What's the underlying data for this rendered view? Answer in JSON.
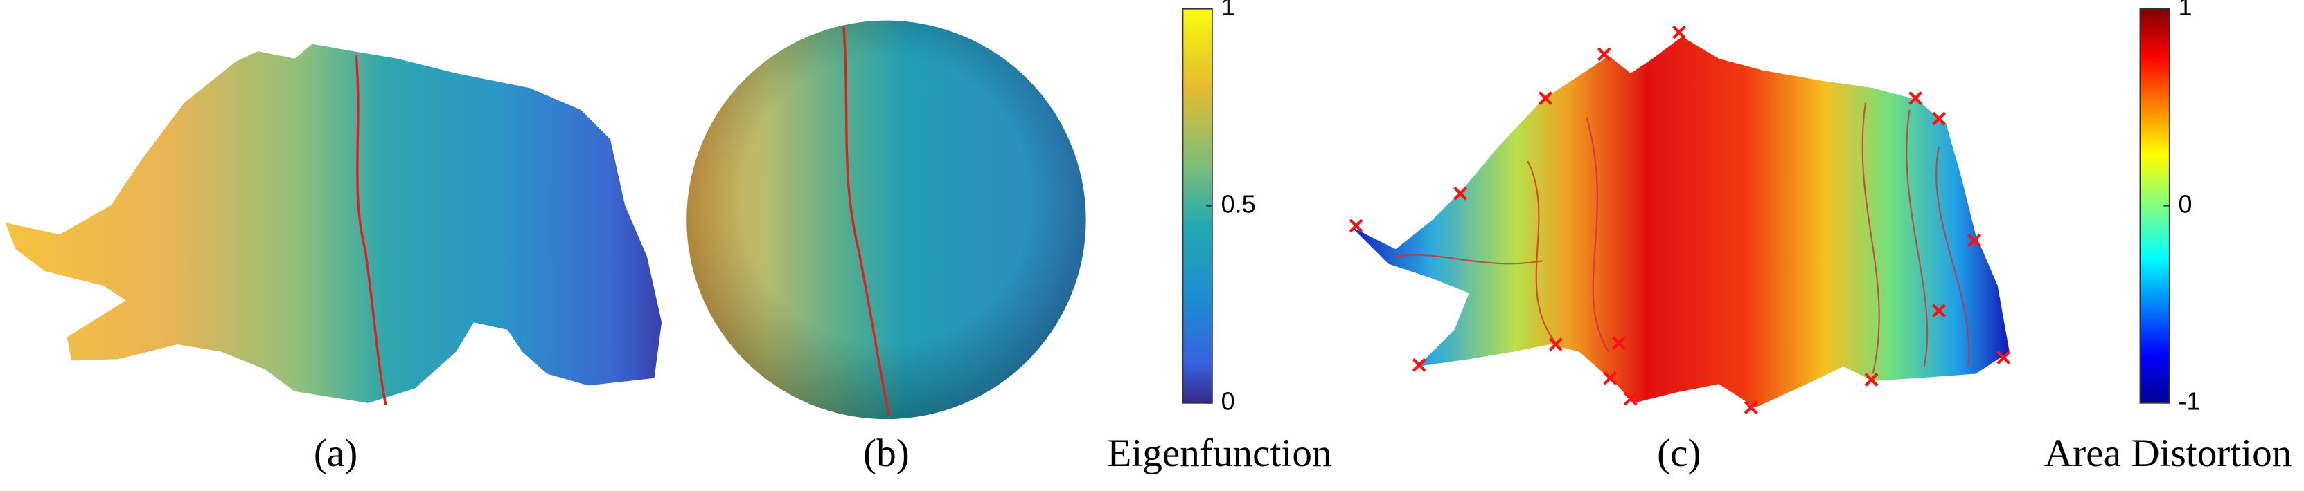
{
  "panels": [
    {
      "caption": "(a)"
    },
    {
      "caption": "(b)"
    },
    {
      "caption": "(c)"
    }
  ],
  "colorbars": [
    {
      "label": "Eigenfunction",
      "ticks": [
        0,
        0.5,
        1
      ]
    },
    {
      "label": "Area Distortion",
      "ticks": [
        -1,
        0,
        1
      ]
    }
  ]
}
